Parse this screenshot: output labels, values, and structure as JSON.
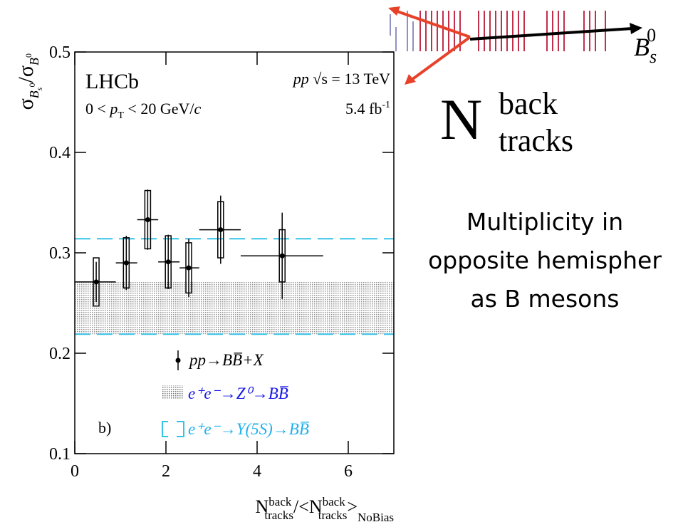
{
  "chart_data": {
    "type": "errorbar",
    "xlim": [
      0,
      7
    ],
    "ylim": [
      0.1,
      0.5
    ],
    "xticks": [
      0,
      2,
      4,
      6
    ],
    "yticks": [
      0.1,
      0.2,
      0.3,
      0.4,
      0.5
    ],
    "y_label": [
      "σ",
      "B",
      "s",
      "0",
      "/σ",
      "B",
      "0"
    ],
    "x_label": [
      "N",
      "back",
      "tracks",
      "/<N",
      "back",
      "tracks",
      ">",
      "NoBias"
    ],
    "experiment": "LHCb",
    "energy": [
      "pp",
      " √s = 13 TeV"
    ],
    "pt_range": [
      "0 < ",
      "p",
      "T",
      " < 20 GeV/",
      "c"
    ],
    "luminosity": [
      "5.4 fb",
      "-1"
    ],
    "panel": "b)",
    "series": [
      {
        "name": "pp→BB̅+X",
        "color": "#000000",
        "x": [
          0.47,
          1.13,
          1.6,
          2.05,
          2.5,
          3.2,
          4.55
        ],
        "values": [
          0.271,
          0.29,
          0.333,
          0.291,
          0.285,
          0.323,
          0.297
        ],
        "x_low": [
          0,
          0.9,
          1.37,
          1.83,
          2.3,
          2.73,
          3.64
        ],
        "x_high": [
          0.9,
          1.37,
          1.83,
          2.3,
          2.73,
          3.64,
          5.45
        ],
        "stat_err": [
          0.02,
          0.027,
          0.03,
          0.027,
          0.029,
          0.034,
          0.043
        ],
        "syst_err": [
          0.024,
          0.025,
          0.029,
          0.026,
          0.025,
          0.028,
          0.026
        ]
      }
    ],
    "bands": [
      {
        "name": "e⁺e⁻→Z⁰→BB̅",
        "style": "hatch",
        "color": "#8a8a8a",
        "text_color": "#1a1ae6",
        "range": [
          0.219,
          0.272
        ]
      },
      {
        "name": "e⁺e⁻→Υ(5S)→BB̅",
        "style": "dashed",
        "color": "#35c3e8",
        "text_color": "#1fb0ee",
        "range": [
          0.219,
          0.314
        ]
      }
    ]
  },
  "side_panel": {
    "variable": [
      "N",
      "back",
      "tracks"
    ],
    "description": [
      "Multiplicity in",
      "opposite hemispher",
      "as B mesons"
    ],
    "particle": [
      "B",
      "s",
      "0"
    ]
  }
}
